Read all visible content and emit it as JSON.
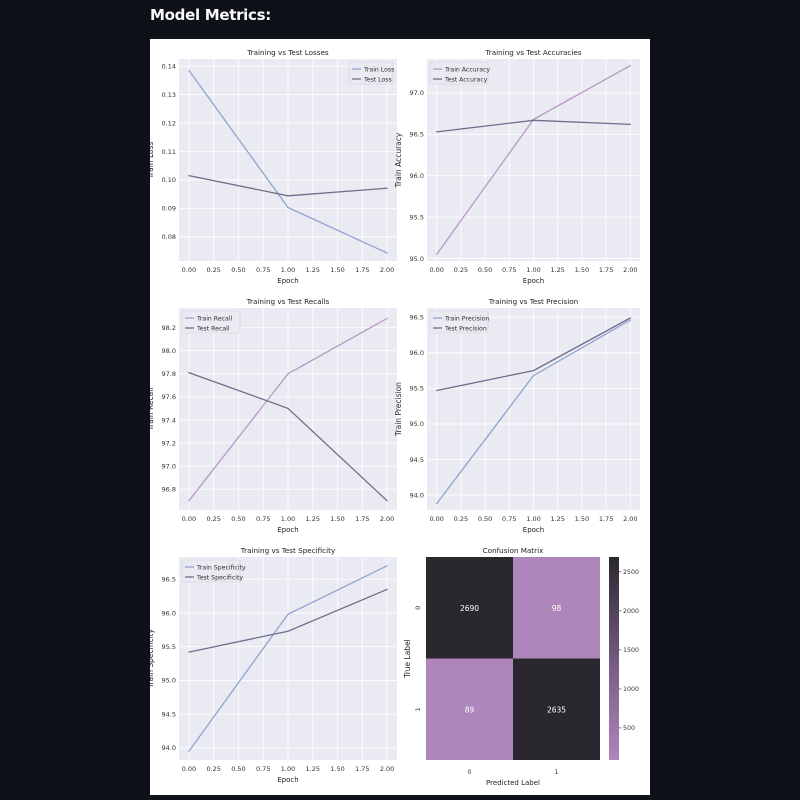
{
  "page": {
    "heading": "Model Metrics:"
  },
  "colors": {
    "page_bg": "#0e1117",
    "figure_bg": "#ffffff",
    "axes_bg": "#eaeaf2",
    "grid": "#ffffff",
    "blue": "#8ea4d2",
    "purple": "#b898c9",
    "dark": "#6f6e8c",
    "cm_dark": "#2a272e",
    "cm_light": "#ae86bb"
  },
  "chart_data": [
    {
      "type": "line",
      "title": "Training vs Test Losses",
      "xlabel": "Epoch",
      "ylabel": "Train Loss",
      "x": [
        0,
        1,
        2
      ],
      "xticks": [
        "0.00",
        "0.25",
        "0.50",
        "0.75",
        "1.00",
        "1.25",
        "1.50",
        "1.75",
        "2.00"
      ],
      "yticks": [
        "0.08",
        "0.09",
        "0.10",
        "0.11",
        "0.12",
        "0.13",
        "0.14"
      ],
      "ylim": [
        0.0715,
        0.1425
      ],
      "legend": "top-right",
      "series": [
        {
          "name": "Train Loss",
          "color": "blue",
          "values": [
            0.1385,
            0.0903,
            0.0743
          ]
        },
        {
          "name": "Test Loss",
          "color": "dark",
          "values": [
            0.1015,
            0.0944,
            0.0971
          ]
        }
      ]
    },
    {
      "type": "line",
      "title": "Training vs Test Accuracies",
      "xlabel": "Epoch",
      "ylabel": "Train Accuracy",
      "x": [
        0,
        1,
        2
      ],
      "xticks": [
        "0.00",
        "0.25",
        "0.50",
        "0.75",
        "1.00",
        "1.25",
        "1.50",
        "1.75",
        "2.00"
      ],
      "yticks": [
        "95.0",
        "95.5",
        "96.0",
        "96.5",
        "97.0"
      ],
      "ylim": [
        94.97,
        97.41
      ],
      "legend": "top-left",
      "series": [
        {
          "name": "Train Accuracy",
          "color": "purple",
          "values": [
            95.05,
            96.68,
            97.33
          ]
        },
        {
          "name": "Test Accuracy",
          "color": "dark",
          "values": [
            96.53,
            96.67,
            96.62
          ]
        }
      ]
    },
    {
      "type": "line",
      "title": "Training vs Test Recalls",
      "xlabel": "Epoch",
      "ylabel": "Train Recall",
      "x": [
        0,
        1,
        2
      ],
      "xticks": [
        "0.00",
        "0.25",
        "0.50",
        "0.75",
        "1.00",
        "1.25",
        "1.50",
        "1.75",
        "2.00"
      ],
      "yticks": [
        "96.8",
        "97.0",
        "97.2",
        "97.4",
        "97.6",
        "97.8",
        "98.0",
        "98.2"
      ],
      "ylim": [
        96.62,
        98.37
      ],
      "legend": "top-left",
      "series": [
        {
          "name": "Train Recall",
          "color": "purple",
          "values": [
            96.7,
            97.8,
            98.28
          ]
        },
        {
          "name": "Test Recall",
          "color": "dark",
          "values": [
            97.81,
            97.5,
            96.7
          ]
        }
      ]
    },
    {
      "type": "line",
      "title": "Training vs Test Precision",
      "xlabel": "Epoch",
      "ylabel": "Train Precision",
      "x": [
        0,
        1,
        2
      ],
      "xticks": [
        "0.00",
        "0.25",
        "0.50",
        "0.75",
        "1.00",
        "1.25",
        "1.50",
        "1.75",
        "2.00"
      ],
      "yticks": [
        "94.0",
        "94.5",
        "95.0",
        "95.5",
        "96.0",
        "96.5"
      ],
      "ylim": [
        93.79,
        96.63
      ],
      "legend": "top-left",
      "series": [
        {
          "name": "Train Precision",
          "color": "blue",
          "values": [
            93.88,
            95.68,
            96.46
          ]
        },
        {
          "name": "Test Precision",
          "color": "dark",
          "values": [
            95.47,
            95.75,
            96.49
          ]
        }
      ]
    },
    {
      "type": "line",
      "title": "Training vs Test Specificity",
      "xlabel": "Epoch",
      "ylabel": "Train Specificity",
      "x": [
        0,
        1,
        2
      ],
      "xticks": [
        "0.00",
        "0.25",
        "0.50",
        "0.75",
        "1.00",
        "1.25",
        "1.50",
        "1.75",
        "2.00"
      ],
      "yticks": [
        "94.0",
        "94.5",
        "95.0",
        "95.5",
        "96.0",
        "96.5"
      ],
      "ylim": [
        93.82,
        96.83
      ],
      "legend": "top-left",
      "series": [
        {
          "name": "Train Specificity",
          "color": "blue",
          "values": [
            93.95,
            95.98,
            96.7
          ]
        },
        {
          "name": "Test Specificity",
          "color": "dark",
          "values": [
            95.42,
            95.73,
            96.35
          ]
        }
      ]
    },
    {
      "type": "heatmap",
      "title": "Confusion Matrix",
      "xlabel": "Predicted Label",
      "ylabel": "True Label",
      "xticks": [
        "0",
        "1"
      ],
      "yticks": [
        "0",
        "1"
      ],
      "values": [
        [
          2690,
          98
        ],
        [
          89,
          2635
        ]
      ],
      "colorbar": {
        "ticks": [
          500,
          1000,
          1500,
          2000,
          2500
        ],
        "range": [
          89,
          2690
        ]
      }
    }
  ]
}
